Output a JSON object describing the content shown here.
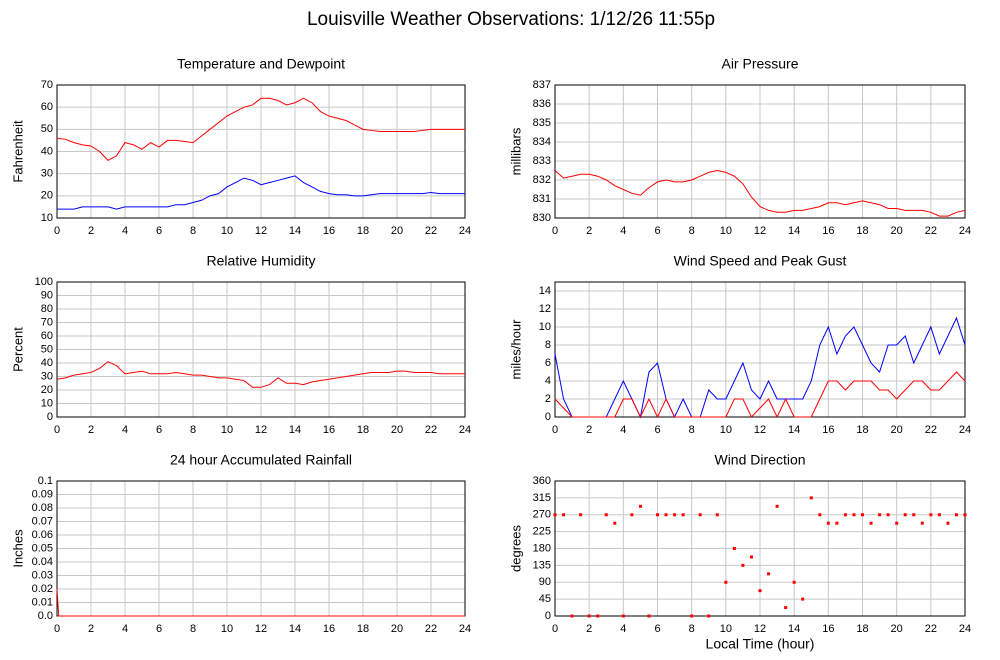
{
  "title": "Louisville Weather Observations: 1/12/26 11:55p",
  "xlabel": "Local Time (hour)",
  "chart_data": [
    {
      "type": "line",
      "title": "Temperature and Dewpoint",
      "ylabel": "Fahrenheit",
      "grid": true,
      "xlim": [
        0,
        24
      ],
      "xticks": [
        0,
        2,
        4,
        6,
        8,
        10,
        12,
        14,
        16,
        18,
        20,
        22,
        24
      ],
      "ylim": [
        10,
        70
      ],
      "yticks": [
        10,
        20,
        30,
        40,
        50,
        60,
        70
      ],
      "x": [
        0,
        0.5,
        1,
        1.5,
        2,
        2.5,
        3,
        3.5,
        4,
        4.5,
        5,
        5.5,
        6,
        6.5,
        7,
        7.5,
        8,
        8.5,
        9,
        9.5,
        10,
        10.5,
        11,
        11.5,
        12,
        12.5,
        13,
        13.5,
        14,
        14.5,
        15,
        15.5,
        16,
        16.5,
        17,
        17.5,
        18,
        18.5,
        19,
        19.5,
        20,
        20.5,
        21,
        21.5,
        22,
        22.5,
        23,
        23.5,
        24
      ],
      "series": [
        {
          "color": "#ff0000",
          "values": [
            46,
            45.5,
            44,
            43,
            42.5,
            40,
            36,
            38,
            44,
            43,
            41,
            44,
            42,
            45,
            45,
            44.5,
            44,
            47,
            50,
            53,
            56,
            58,
            60,
            61,
            64,
            64,
            63,
            61,
            62,
            64,
            62,
            58,
            56,
            55,
            54,
            52,
            50,
            49.5,
            49,
            49,
            49,
            49,
            49,
            49.5,
            50,
            50,
            50,
            50,
            50
          ]
        },
        {
          "color": "#0000ff",
          "values": [
            14,
            14,
            14,
            15,
            15,
            15,
            15,
            14,
            15,
            15,
            15,
            15,
            15,
            15,
            16,
            16,
            17,
            18,
            20,
            21,
            24,
            26,
            28,
            27,
            25,
            26,
            27,
            28,
            29,
            26,
            24,
            22,
            21,
            20.5,
            20.5,
            20,
            20,
            20.5,
            21,
            21,
            21,
            21,
            21,
            21,
            21.5,
            21,
            21,
            21,
            21
          ]
        }
      ]
    },
    {
      "type": "line",
      "title": "Air Pressure",
      "ylabel": "millibars",
      "grid": true,
      "xlim": [
        0,
        24
      ],
      "xticks": [
        0,
        2,
        4,
        6,
        8,
        10,
        12,
        14,
        16,
        18,
        20,
        22,
        24
      ],
      "ylim": [
        830,
        837
      ],
      "yticks": [
        830,
        831,
        832,
        833,
        834,
        835,
        836,
        837
      ],
      "x": [
        0,
        0.5,
        1,
        1.5,
        2,
        2.5,
        3,
        3.5,
        4,
        4.5,
        5,
        5.5,
        6,
        6.5,
        7,
        7.5,
        8,
        8.5,
        9,
        9.5,
        10,
        10.5,
        11,
        11.5,
        12,
        12.5,
        13,
        13.5,
        14,
        14.5,
        15,
        15.5,
        16,
        16.5,
        17,
        17.5,
        18,
        18.5,
        19,
        19.5,
        20,
        20.5,
        21,
        21.5,
        22,
        22.5,
        23,
        23.5,
        24
      ],
      "series": [
        {
          "color": "#ff0000",
          "values": [
            832.5,
            832.1,
            832.2,
            832.3,
            832.3,
            832.2,
            832.0,
            831.7,
            831.5,
            831.3,
            831.2,
            831.6,
            831.9,
            832.0,
            831.9,
            831.9,
            832.0,
            832.2,
            832.4,
            832.5,
            832.4,
            832.2,
            831.8,
            831.1,
            830.6,
            830.4,
            830.3,
            830.3,
            830.4,
            830.4,
            830.5,
            830.6,
            830.8,
            830.8,
            830.7,
            830.8,
            830.9,
            830.8,
            830.7,
            830.5,
            830.5,
            830.4,
            830.4,
            830.4,
            830.3,
            830.1,
            830.1,
            830.3,
            830.4
          ]
        }
      ]
    },
    {
      "type": "line",
      "title": "Relative Humidity",
      "ylabel": "Percent",
      "grid": true,
      "xlim": [
        0,
        24
      ],
      "xticks": [
        0,
        2,
        4,
        6,
        8,
        10,
        12,
        14,
        16,
        18,
        20,
        22,
        24
      ],
      "ylim": [
        0,
        100
      ],
      "yticks": [
        0,
        10,
        20,
        30,
        40,
        50,
        60,
        70,
        80,
        90,
        100
      ],
      "x": [
        0,
        0.5,
        1,
        1.5,
        2,
        2.5,
        3,
        3.5,
        4,
        4.5,
        5,
        5.5,
        6,
        6.5,
        7,
        7.5,
        8,
        8.5,
        9,
        9.5,
        10,
        10.5,
        11,
        11.5,
        12,
        12.5,
        13,
        13.5,
        14,
        14.5,
        15,
        15.5,
        16,
        16.5,
        17,
        17.5,
        18,
        18.5,
        19,
        19.5,
        20,
        20.5,
        21,
        21.5,
        22,
        22.5,
        23,
        23.5,
        24
      ],
      "series": [
        {
          "color": "#ff0000",
          "values": [
            28,
            29,
            31,
            32,
            33,
            36,
            41,
            38,
            32,
            33,
            34,
            32,
            32,
            32,
            33,
            32,
            31,
            31,
            30,
            29,
            29,
            28,
            27,
            22,
            22,
            24,
            29,
            25,
            25,
            24,
            26,
            27,
            28,
            29,
            30,
            31,
            32,
            33,
            33,
            33,
            34,
            34,
            33,
            33,
            33,
            32,
            32,
            32,
            32
          ]
        }
      ]
    },
    {
      "type": "line",
      "title": "Wind Speed and Peak Gust",
      "ylabel": "miles/hour",
      "grid": true,
      "xlim": [
        0,
        24
      ],
      "xticks": [
        0,
        2,
        4,
        6,
        8,
        10,
        12,
        14,
        16,
        18,
        20,
        22,
        24
      ],
      "ylim": [
        0,
        15
      ],
      "yticks": [
        0,
        2,
        4,
        6,
        8,
        10,
        12,
        14
      ],
      "x": [
        0,
        0.5,
        1,
        1.5,
        2,
        2.5,
        3,
        3.5,
        4,
        4.5,
        5,
        5.5,
        6,
        6.5,
        7,
        7.5,
        8,
        8.5,
        9,
        9.5,
        10,
        10.5,
        11,
        11.5,
        12,
        12.5,
        13,
        13.5,
        14,
        14.5,
        15,
        15.5,
        16,
        16.5,
        17,
        17.5,
        18,
        18.5,
        19,
        19.5,
        20,
        20.5,
        21,
        21.5,
        22,
        22.5,
        23,
        23.5,
        24
      ],
      "series": [
        {
          "color": "#0000ff",
          "values": [
            7,
            2,
            0,
            0,
            0,
            0,
            0,
            2,
            4,
            2,
            0,
            5,
            6,
            2,
            0,
            2,
            0,
            0,
            3,
            2,
            2,
            4,
            6,
            3,
            2,
            4,
            2,
            2,
            2,
            2,
            4,
            8,
            10,
            7,
            9,
            10,
            8,
            6,
            5,
            8,
            8,
            9,
            6,
            8,
            10,
            7,
            9,
            11,
            8
          ]
        },
        {
          "color": "#ff0000",
          "values": [
            2,
            1,
            0,
            0,
            0,
            0,
            0,
            0,
            2,
            2,
            0,
            2,
            0,
            2,
            0,
            0,
            0,
            0,
            0,
            0,
            0,
            2,
            2,
            0,
            1,
            2,
            0,
            2,
            0,
            0,
            0,
            2,
            4,
            4,
            3,
            4,
            4,
            4,
            3,
            3,
            2,
            3,
            4,
            4,
            3,
            3,
            4,
            5,
            4
          ]
        }
      ]
    },
    {
      "type": "line",
      "title": "24 hour Accumulated Rainfall",
      "ylabel": "Inches",
      "grid": true,
      "xlim": [
        0,
        24
      ],
      "xticks": [
        0,
        2,
        4,
        6,
        8,
        10,
        12,
        14,
        16,
        18,
        20,
        22,
        24
      ],
      "ylim": [
        0,
        0.1
      ],
      "yticks": [
        {
          "value": 0,
          "label": "0.0"
        },
        0.01,
        0.02,
        0.03,
        0.04,
        0.05,
        0.06,
        0.07,
        0.08,
        0.09,
        0.1
      ],
      "x": [
        0,
        0.1,
        24
      ],
      "series": [
        {
          "color": "#ff0000",
          "values": [
            0.02,
            0,
            0
          ]
        }
      ]
    },
    {
      "type": "scatter",
      "title": "Wind Direction",
      "ylabel": "degrees",
      "grid": true,
      "xlim": [
        0,
        24
      ],
      "xticks": [
        0,
        2,
        4,
        6,
        8,
        10,
        12,
        14,
        16,
        18,
        20,
        22,
        24
      ],
      "ylim": [
        0,
        360
      ],
      "yticks": [
        0,
        45,
        90,
        135,
        180,
        225,
        270,
        315,
        360
      ],
      "x": [
        0,
        0.5,
        1,
        1.5,
        2,
        2.5,
        3,
        3.5,
        4,
        4.5,
        5,
        5.5,
        6,
        6.5,
        7,
        7.5,
        8,
        8.5,
        9,
        9.5,
        10,
        10.5,
        11,
        11.5,
        12,
        12.5,
        13,
        13.5,
        14,
        14.5,
        15,
        15.5,
        16,
        16.5,
        17,
        17.5,
        18,
        18.5,
        19,
        19.5,
        20,
        20.5,
        21,
        21.5,
        22,
        22.5,
        23,
        23.5,
        24
      ],
      "series": [
        {
          "color": "#ff0000",
          "values": [
            270,
            270,
            0,
            270,
            0,
            0,
            270,
            247.5,
            0,
            270,
            292.5,
            0,
            270,
            270,
            270,
            270,
            0,
            270,
            0,
            270,
            90,
            180,
            135,
            157.5,
            67.5,
            112.5,
            292.5,
            22.5,
            90,
            45,
            315,
            270,
            247.5,
            247.5,
            270,
            270,
            270,
            247.5,
            270,
            270,
            247.5,
            270,
            270,
            247.5,
            270,
            270,
            247.5,
            270,
            270
          ]
        }
      ]
    }
  ]
}
